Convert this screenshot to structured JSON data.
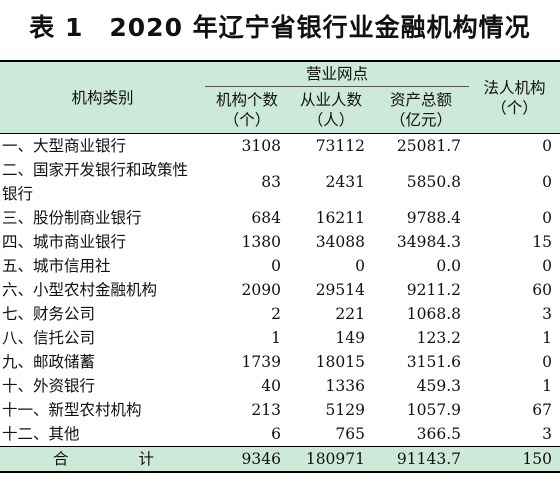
{
  "title": "表 1　2020 年辽宁省银行业金融机构情况",
  "headers": {
    "category": "机构类别",
    "group": "营业网点",
    "count": "机构个数",
    "count_unit": "（个）",
    "staff": "从业人数",
    "staff_unit": "（人）",
    "assets": "资产总额",
    "assets_unit": "（亿元）",
    "legal": "法人机构",
    "legal_unit": "（个）"
  },
  "rows": [
    {
      "category": "一、大型商业银行",
      "count": "3108",
      "staff": "73112",
      "assets": "25081.7",
      "legal": "0"
    },
    {
      "category": "二、国家开发银行和政策性银行",
      "count": "83",
      "staff": "2431",
      "assets": "5850.8",
      "legal": "0"
    },
    {
      "category": "三、股份制商业银行",
      "count": "684",
      "staff": "16211",
      "assets": "9788.4",
      "legal": "0"
    },
    {
      "category": "四、城市商业银行",
      "count": "1380",
      "staff": "34088",
      "assets": "34984.3",
      "legal": "15"
    },
    {
      "category": "五、城市信用社",
      "count": "0",
      "staff": "0",
      "assets": "0.0",
      "legal": "0"
    },
    {
      "category": "六、小型农村金融机构",
      "count": "2090",
      "staff": "29514",
      "assets": "9211.2",
      "legal": "60"
    },
    {
      "category": "七、财务公司",
      "count": "2",
      "staff": "221",
      "assets": "1068.8",
      "legal": "3"
    },
    {
      "category": "八、信托公司",
      "count": "1",
      "staff": "149",
      "assets": "123.2",
      "legal": "1"
    },
    {
      "category": "九、邮政储蓄",
      "count": "1739",
      "staff": "18015",
      "assets": "3151.6",
      "legal": "0"
    },
    {
      "category": "十、外资银行",
      "count": "40",
      "staff": "1336",
      "assets": "459.3",
      "legal": "1"
    },
    {
      "category": "十一、新型农村机构",
      "count": "213",
      "staff": "5129",
      "assets": "1057.9",
      "legal": "67"
    },
    {
      "category": "十二、其他",
      "count": "6",
      "staff": "765",
      "assets": "366.5",
      "legal": "3"
    }
  ],
  "total": {
    "label_left": "合",
    "label_right": "计",
    "count": "9346",
    "staff": "180971",
    "assets": "91143.7",
    "legal": "150"
  }
}
